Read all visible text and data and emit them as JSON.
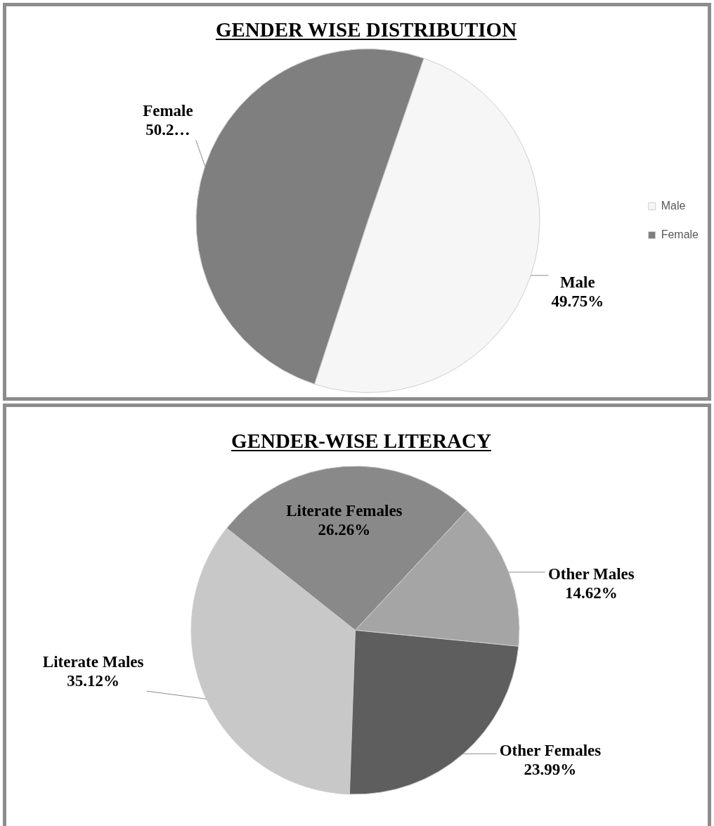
{
  "chart_data": [
    {
      "type": "pie",
      "title": "GENDER WISE DISTRIBUTION",
      "categories": [
        "Male",
        "Female"
      ],
      "values": [
        49.75,
        50.25
      ],
      "colors": [
        "#f6f6f6",
        "#7f7f7f"
      ],
      "value_labels": [
        "49.75%",
        "50.2…"
      ],
      "legend": "right"
    },
    {
      "type": "pie",
      "title": "GENDER-WISE LITERACY",
      "categories": [
        "Literate Males",
        "Literate Females",
        "Other Males",
        "Other Females"
      ],
      "values": [
        35.12,
        26.26,
        14.62,
        23.99
      ],
      "colors": [
        "#c8c8c8",
        "#898989",
        "#a5a5a5",
        "#5e5e5e"
      ],
      "value_labels": [
        "35.12%",
        "26.26%",
        "14.62%",
        "23.99%"
      ]
    }
  ]
}
